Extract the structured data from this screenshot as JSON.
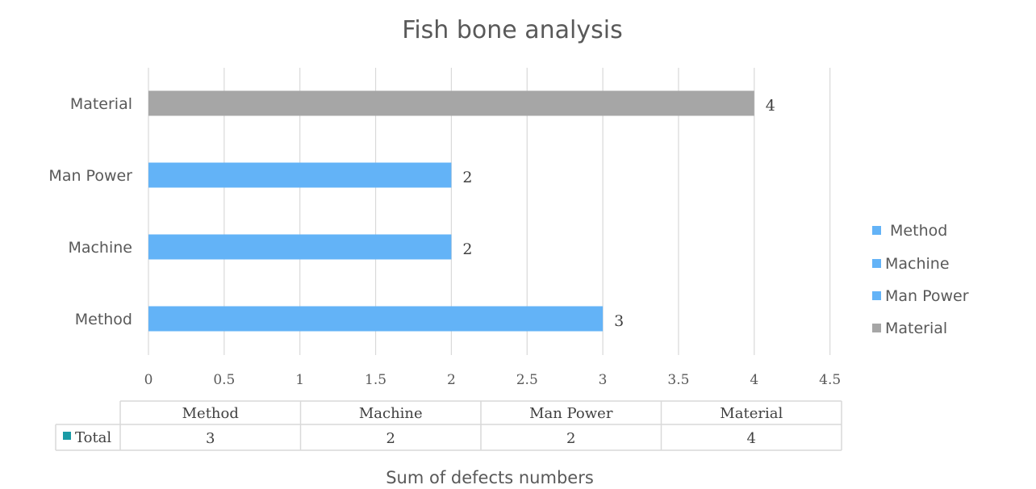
{
  "chart_data": {
    "type": "bar",
    "orientation": "horizontal",
    "title": "Fish bone analysis",
    "xlabel": "Sum of defects numbers",
    "ylabel": "",
    "categories": [
      "Method",
      "Machine",
      "Man Power",
      "Material"
    ],
    "values": [
      3,
      2,
      2,
      4
    ],
    "bar_colors": [
      "#63B3F7",
      "#63B3F7",
      "#63B3F7",
      "#A6A6A6"
    ],
    "xlim": [
      0,
      4.5
    ],
    "x_ticks": [
      "0",
      "0.5",
      "1",
      "1.5",
      "2",
      "2.5",
      "3",
      "3.5",
      "4",
      "4.5"
    ],
    "data_labels": [
      "3",
      "2",
      "2",
      "4"
    ],
    "grid": true,
    "legend": {
      "placement": "right",
      "entries": [
        {
          "label": " Method",
          "color": "#63B3F7"
        },
        {
          "label": "Machine",
          "color": "#63B3F7"
        },
        {
          "label": "Man Power",
          "color": "#63B3F7"
        },
        {
          "label": "Material",
          "color": "#A6A6A6"
        }
      ]
    },
    "data_table": {
      "columns": [
        "Method",
        "Machine",
        "Man Power",
        "Material"
      ],
      "row_label": "Total",
      "row_key_color": "#1A9BA6",
      "values": [
        "3",
        "2",
        "2",
        "4"
      ]
    }
  }
}
